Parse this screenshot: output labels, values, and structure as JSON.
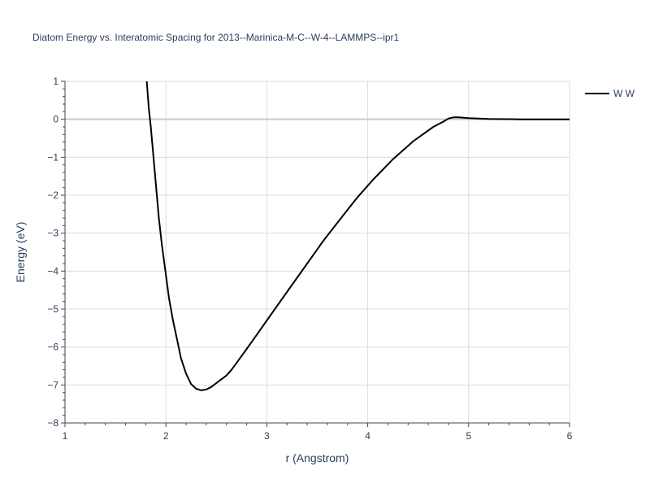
{
  "chart_data": {
    "type": "line",
    "title": "Diatom Energy vs. Interatomic Spacing for 2013--Marinica-M-C--W-4--LAMMPS--ipr1",
    "xlabel": "r (Angstrom)",
    "ylabel": "Energy (eV)",
    "xlim": [
      1,
      6
    ],
    "ylim": [
      -8,
      1
    ],
    "x_ticks": [
      "1",
      "2",
      "3",
      "4",
      "5",
      "6"
    ],
    "y_ticks": [
      "1",
      "0",
      "−1",
      "−2",
      "−3",
      "−4",
      "−5",
      "−6",
      "−7",
      "−8"
    ],
    "grid": true,
    "legend_position": "top-right",
    "series": [
      {
        "name": "W W",
        "color": "#000000",
        "x": [
          1.81,
          1.83,
          1.85,
          1.87,
          1.9,
          1.93,
          1.96,
          2.0,
          2.03,
          2.07,
          2.11,
          2.15,
          2.2,
          2.25,
          2.3,
          2.35,
          2.4,
          2.45,
          2.5,
          2.55,
          2.6,
          2.65,
          2.7,
          2.8,
          2.9,
          3.0,
          3.2,
          3.4,
          3.56,
          3.75,
          3.9,
          4.05,
          4.25,
          4.45,
          4.65,
          4.75,
          4.8,
          4.85,
          4.9,
          5.0,
          5.2,
          5.5,
          6.0
        ],
        "y": [
          1.0,
          0.3,
          -0.2,
          -0.8,
          -1.7,
          -2.6,
          -3.3,
          -4.1,
          -4.7,
          -5.3,
          -5.8,
          -6.3,
          -6.7,
          -6.98,
          -7.1,
          -7.14,
          -7.12,
          -7.05,
          -6.95,
          -6.85,
          -6.75,
          -6.6,
          -6.42,
          -6.05,
          -5.68,
          -5.3,
          -4.55,
          -3.8,
          -3.2,
          -2.55,
          -2.05,
          -1.6,
          -1.05,
          -0.58,
          -0.2,
          -0.06,
          0.02,
          0.05,
          0.05,
          0.03,
          0.01,
          0.0,
          0.0
        ]
      }
    ]
  }
}
